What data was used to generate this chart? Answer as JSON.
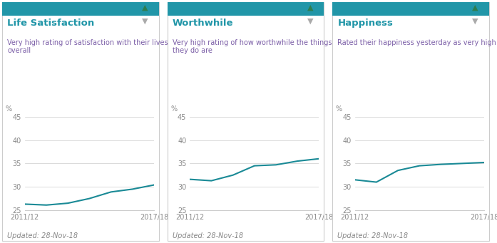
{
  "panels": [
    {
      "title": "Life Satisfaction",
      "subtitle": "Very high rating of satisfaction with their lives\noverall",
      "x_labels": [
        "2011/12",
        "2017/18"
      ],
      "x_values": [
        0,
        1,
        2,
        3,
        4,
        5,
        6
      ],
      "y_values": [
        26.3,
        26.1,
        26.5,
        27.5,
        28.9,
        29.5,
        30.4
      ],
      "ylim": [
        25,
        45
      ],
      "yticks": [
        25,
        30,
        35,
        40,
        45
      ]
    },
    {
      "title": "Worthwhile",
      "subtitle": "Very high rating of how worthwhile the things\nthey do are",
      "x_labels": [
        "2011/12",
        "2017/18"
      ],
      "x_values": [
        0,
        1,
        2,
        3,
        4,
        5,
        6
      ],
      "y_values": [
        31.6,
        31.3,
        32.5,
        34.5,
        34.7,
        35.5,
        36.0
      ],
      "ylim": [
        25,
        45
      ],
      "yticks": [
        25,
        30,
        35,
        40,
        45
      ]
    },
    {
      "title": "Happiness",
      "subtitle": "Rated their happiness yesterday as very high",
      "x_labels": [
        "2011/12",
        "2017/18"
      ],
      "x_values": [
        0,
        1,
        2,
        3,
        4,
        5,
        6
      ],
      "y_values": [
        31.5,
        31.0,
        33.5,
        34.5,
        34.8,
        35.0,
        35.2
      ],
      "ylim": [
        25,
        45
      ],
      "yticks": [
        25,
        30,
        35,
        40,
        45
      ]
    }
  ],
  "line_color": "#1a8a96",
  "header_bar_color": "#2196A8",
  "title_color": "#2196A8",
  "subtitle_color": "#7B5EA7",
  "tick_color": "#888888",
  "grid_color": "#cccccc",
  "background_color": "#ffffff",
  "panel_border_color": "#cccccc",
  "updated_text": "Updated: 28-Nov-18",
  "ylabel": "%",
  "up_arrow_color": "#2e7d4f",
  "down_arrow_color": "#aaaaaa"
}
